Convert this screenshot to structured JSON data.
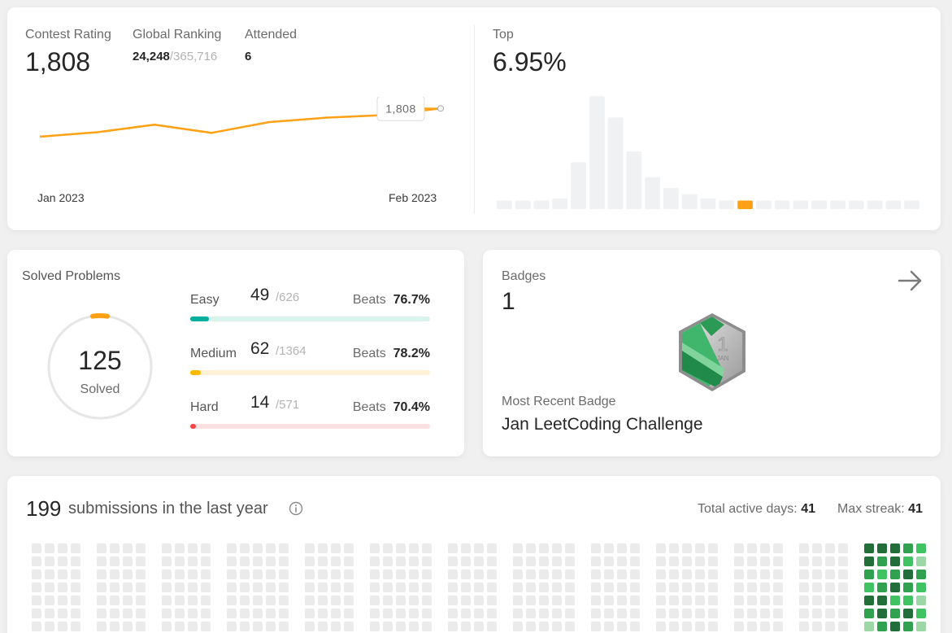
{
  "contest": {
    "rating_label": "Contest Rating",
    "rating_value": "1,808",
    "ranking_label": "Global Ranking",
    "ranking_value": "24,248",
    "ranking_total": "/365,716",
    "attended_label": "Attended",
    "attended_value": "6",
    "tooltip_value": "1,808",
    "axis_start": "Jan 2023",
    "axis_end": "Feb 2023",
    "top_label": "Top",
    "top_value": "6.95%"
  },
  "chart_data": [
    {
      "type": "line",
      "x": [
        "Jan 2023",
        "",
        "",
        "",
        "",
        "",
        "",
        "Feb 2023"
      ],
      "y": [
        1585,
        1620,
        1680,
        1615,
        1700,
        1735,
        1755,
        1808
      ],
      "xlabel": "",
      "ylabel": "",
      "ylim": [
        1450,
        1900
      ],
      "color": "#ffa116",
      "grid": false
    },
    {
      "type": "bar",
      "values": [
        4,
        4,
        4,
        5,
        22,
        53,
        43,
        27,
        15,
        10,
        7,
        5,
        4,
        4,
        4,
        4,
        4,
        4,
        4,
        4,
        4,
        4,
        4
      ],
      "highlight_index": 13,
      "ylim": [
        0,
        55
      ],
      "color": "#f0f1f3",
      "highlight_color": "#ffa116",
      "grid": false
    }
  ],
  "solved": {
    "title": "Solved Problems",
    "total": "125",
    "total_label": "Solved",
    "progress_fraction": 0.0463,
    "rows": [
      {
        "name": "Easy",
        "solved": "49",
        "total": "/626",
        "beats_label": "Beats",
        "beats": "76.7%",
        "fraction": 0.0783,
        "color": "#00af9b",
        "track_color": "#d8f2ec"
      },
      {
        "name": "Medium",
        "solved": "62",
        "total": "/1364",
        "beats_label": "Beats",
        "beats": "78.2%",
        "fraction": 0.0455,
        "color": "#ffb800",
        "track_color": "#fcf1d4"
      },
      {
        "name": "Hard",
        "solved": "14",
        "total": "/571",
        "beats_label": "Beats",
        "beats": "70.4%",
        "fraction": 0.0245,
        "color": "#ef4743",
        "track_color": "#fbe1e1"
      }
    ]
  },
  "badges": {
    "title": "Badges",
    "count": "1",
    "arrow_icon": "arrow-right-icon",
    "badge_number": "1",
    "badge_month": "JAN",
    "recent_label": "Most Recent Badge",
    "recent_name": "Jan LeetCoding Challenge"
  },
  "submissions": {
    "count": "199",
    "text": "submissions in the last year",
    "info_icon": "info-icon",
    "active_days_label": "Total active days:",
    "active_days": "41",
    "max_streak_label": "Max streak:",
    "max_streak": "41",
    "active_weeks": [
      [
        0,
        1,
        2,
        3,
        4,
        5
      ],
      [
        0,
        1,
        2,
        3,
        4,
        5
      ],
      [
        0,
        1,
        2,
        3,
        4,
        5
      ],
      [
        0,
        1,
        2,
        3,
        4,
        5
      ],
      [
        0,
        1,
        2,
        3,
        4,
        5
      ]
    ]
  },
  "colors": {
    "accent": "#ffa116",
    "empty_cell": "#ebebeb",
    "green_levels": [
      "#9bd8a6",
      "#40c463",
      "#30a14e",
      "#216e39"
    ]
  }
}
